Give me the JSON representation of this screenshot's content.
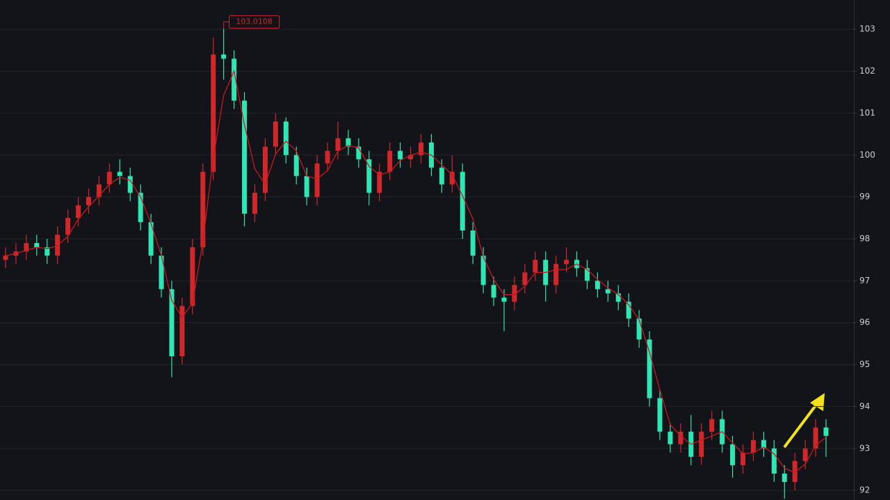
{
  "chart_data": {
    "type": "candlestick",
    "up_color": "#d0272b",
    "down_color": "#2ee6b4",
    "ma_color": "#c8191f",
    "grid": true,
    "ylim": [
      91.77,
      103.7
    ],
    "yticks": [
      92,
      93,
      94,
      95,
      96,
      97,
      98,
      99,
      100,
      101,
      102,
      103
    ],
    "open": [
      97.5,
      97.6,
      97.7,
      97.9,
      97.8,
      97.6,
      98.1,
      98.5,
      98.8,
      99.0,
      99.3,
      99.6,
      99.5,
      99.1,
      98.4,
      97.6,
      96.8,
      95.2,
      96.4,
      97.8,
      99.6,
      102.4,
      102.3,
      101.3,
      98.6,
      99.1,
      100.2,
      100.8,
      100.0,
      99.5,
      99.0,
      99.8,
      100.1,
      100.4,
      100.2,
      99.9,
      99.1,
      99.6,
      100.1,
      99.9,
      100.0,
      100.3,
      99.7,
      99.3,
      99.6,
      98.2,
      97.6,
      96.9,
      96.6,
      96.5,
      96.9,
      97.2,
      97.5,
      96.9,
      97.4,
      97.5,
      97.3,
      97.0,
      96.8,
      96.7,
      96.5,
      96.1,
      95.6,
      94.2,
      93.4,
      93.1,
      93.4,
      92.8,
      93.4,
      93.7,
      93.1,
      92.6,
      92.9,
      93.2,
      93.0,
      92.4,
      92.2,
      92.7,
      93.0,
      93.5
    ],
    "high": [
      97.8,
      97.9,
      98.1,
      98.1,
      98.0,
      98.3,
      98.7,
      99.0,
      99.2,
      99.5,
      99.8,
      99.9,
      99.7,
      99.3,
      98.6,
      97.8,
      97.0,
      96.6,
      98.0,
      99.8,
      102.8,
      103.0108,
      102.5,
      101.5,
      99.3,
      100.4,
      101.0,
      100.9,
      100.2,
      99.7,
      100.0,
      100.3,
      100.8,
      100.6,
      100.4,
      100.1,
      99.8,
      100.3,
      100.3,
      100.2,
      100.5,
      100.5,
      99.9,
      100.0,
      99.8,
      98.4,
      97.8,
      97.1,
      96.8,
      97.1,
      97.4,
      97.7,
      97.7,
      97.6,
      97.8,
      97.7,
      97.5,
      97.2,
      97.0,
      96.9,
      96.7,
      96.3,
      95.8,
      94.4,
      93.6,
      93.6,
      93.8,
      93.6,
      93.9,
      93.9,
      93.3,
      93.1,
      93.4,
      93.4,
      93.2,
      92.6,
      92.9,
      93.2,
      93.7,
      93.7
    ],
    "low": [
      97.3,
      97.4,
      97.5,
      97.6,
      97.4,
      97.4,
      97.9,
      98.3,
      98.6,
      98.8,
      99.1,
      99.3,
      98.9,
      98.2,
      97.4,
      96.6,
      94.7,
      95.0,
      96.2,
      97.6,
      99.4,
      101.8,
      101.1,
      98.3,
      98.4,
      98.9,
      100.0,
      99.8,
      99.3,
      98.8,
      98.8,
      99.6,
      99.9,
      100.0,
      99.7,
      98.8,
      98.9,
      99.4,
      99.7,
      99.7,
      99.8,
      99.5,
      99.1,
      99.1,
      98.0,
      97.4,
      96.7,
      96.4,
      95.8,
      96.3,
      96.7,
      97.0,
      96.5,
      96.7,
      97.2,
      97.1,
      96.8,
      96.6,
      96.5,
      96.3,
      95.9,
      95.4,
      94.0,
      93.2,
      92.9,
      92.9,
      92.6,
      92.6,
      93.2,
      92.9,
      92.3,
      92.4,
      92.7,
      92.8,
      92.2,
      91.8,
      92.0,
      92.5,
      92.8,
      92.8
    ],
    "close": [
      97.6,
      97.7,
      97.9,
      97.8,
      97.6,
      98.1,
      98.5,
      98.8,
      99.0,
      99.3,
      99.6,
      99.5,
      99.1,
      98.4,
      97.6,
      96.8,
      95.2,
      96.4,
      97.8,
      99.6,
      102.4,
      102.3,
      101.3,
      98.6,
      99.1,
      100.2,
      100.8,
      100.0,
      99.5,
      99.0,
      99.8,
      100.1,
      100.4,
      100.2,
      99.9,
      99.1,
      99.6,
      100.1,
      99.9,
      100.0,
      100.3,
      99.7,
      99.3,
      99.6,
      98.2,
      97.6,
      96.9,
      96.6,
      96.5,
      96.9,
      97.2,
      97.5,
      96.9,
      97.4,
      97.5,
      97.3,
      97.0,
      96.8,
      96.7,
      96.5,
      96.1,
      95.6,
      94.2,
      93.4,
      93.1,
      93.4,
      92.8,
      93.4,
      93.7,
      93.1,
      92.6,
      92.9,
      93.2,
      93.0,
      92.4,
      92.2,
      92.7,
      93.0,
      93.5,
      93.3
    ],
    "ma": [
      97.6,
      97.65,
      97.73,
      97.8,
      97.77,
      97.83,
      98.07,
      98.47,
      98.77,
      99.03,
      99.3,
      99.47,
      99.4,
      99.0,
      98.37,
      97.6,
      96.53,
      96.13,
      96.47,
      97.93,
      99.93,
      101.43,
      102.0,
      100.73,
      99.67,
      99.3,
      100.03,
      100.33,
      100.1,
      99.5,
      99.43,
      99.63,
      100.1,
      100.23,
      100.17,
      99.73,
      99.53,
      99.6,
      99.87,
      100.0,
      100.07,
      100.0,
      99.77,
      99.53,
      99.03,
      98.47,
      97.57,
      97.03,
      96.67,
      96.67,
      96.87,
      97.2,
      97.2,
      97.27,
      97.27,
      97.4,
      97.27,
      97.03,
      96.83,
      96.67,
      96.43,
      96.07,
      95.3,
      94.4,
      93.57,
      93.3,
      93.1,
      93.2,
      93.3,
      93.4,
      93.13,
      92.87,
      92.9,
      93.03,
      92.87,
      92.53,
      92.43,
      92.63,
      93.07,
      93.27
    ]
  }
}
